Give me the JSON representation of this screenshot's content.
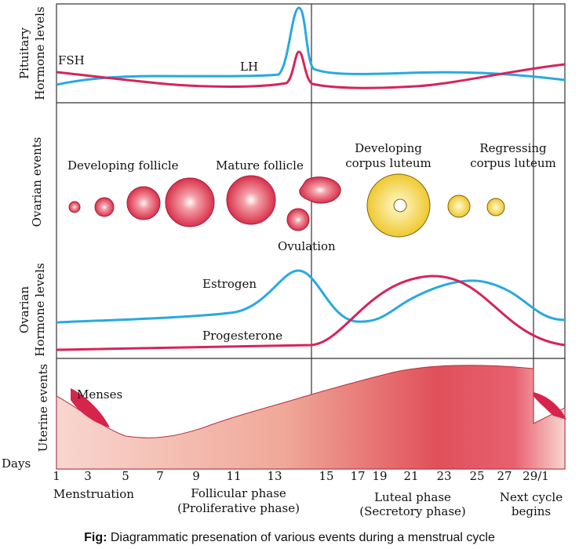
{
  "panels": {
    "pituitary": [
      "Pituitary",
      "Hormone levels"
    ],
    "ovarian_events": "Ovarian events",
    "ovarian_hormones": [
      "Ovarian",
      "Hormone levels"
    ],
    "uterine": "Uterine events"
  },
  "pituitary_labels": {
    "fsh": "FSH",
    "lh": "LH"
  },
  "ovarian_labels": {
    "developing_follicle": "Developing follicle",
    "mature_follicle": "Mature follicle",
    "developing_corpus": [
      "Developing",
      "corpus luteum"
    ],
    "regressing_corpus": [
      "Regressing",
      "corpus luteum"
    ],
    "ovulation": "Ovulation"
  },
  "hormone_labels": {
    "estrogen": "Estrogen",
    "progesterone": "Progesterone"
  },
  "uterine_labels": {
    "menses": "Menses"
  },
  "days": {
    "label": "Days",
    "ticks": [
      "1",
      "3",
      "5",
      "7",
      "9",
      "11",
      "13",
      "15",
      "17",
      "19",
      "21",
      "23",
      "25",
      "27",
      "29/1"
    ]
  },
  "phases": {
    "menstruation": "Menstruation",
    "follicular": [
      "Follicular phase",
      "(Proliferative phase)"
    ],
    "luteal": [
      "Luteal phase",
      "(Secretory phase)"
    ],
    "next": [
      "Next cycle",
      "begins"
    ]
  },
  "caption": {
    "prefix": "Fig:",
    "text": "Diagrammatic presenation of various events during a menstrual cycle"
  }
}
